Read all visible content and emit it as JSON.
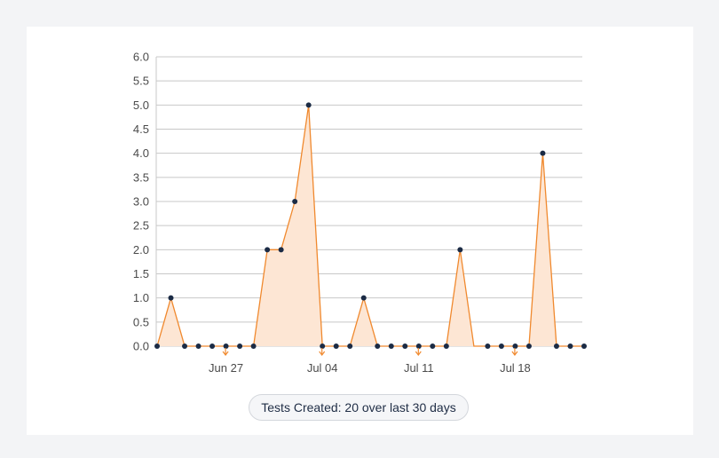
{
  "colors": {
    "line": "#f0892e",
    "fill": "#fde6d4",
    "point": "#1b2b45",
    "grid": "#c8c8c8",
    "arrow": "#f0892e"
  },
  "legend": {
    "label": "Tests Created: 20 over last 30 days"
  },
  "chart_data": {
    "type": "area",
    "title": "",
    "xlabel": "",
    "ylabel": "",
    "ylim": [
      0,
      6
    ],
    "y_ticks": [
      "0.0",
      "0.5",
      "1.0",
      "1.5",
      "2.0",
      "2.5",
      "3.0",
      "3.5",
      "4.0",
      "4.5",
      "5.0",
      "5.5",
      "6.0"
    ],
    "x_ticks": [
      {
        "date": "2021-06-27",
        "label": "Jun 27"
      },
      {
        "date": "2021-07-04",
        "label": "Jul 04"
      },
      {
        "date": "2021-07-11",
        "label": "Jul 11"
      },
      {
        "date": "2021-07-18",
        "label": "Jul 18"
      }
    ],
    "x": [
      "2021-06-22",
      "2021-06-23",
      "2021-06-24",
      "2021-06-25",
      "2021-06-26",
      "2021-06-27",
      "2021-06-28",
      "2021-06-29",
      "2021-06-30",
      "2021-07-01",
      "2021-07-02",
      "2021-07-03",
      "2021-07-04",
      "2021-07-05",
      "2021-07-06",
      "2021-07-07",
      "2021-07-08",
      "2021-07-09",
      "2021-07-10",
      "2021-07-11",
      "2021-07-12",
      "2021-07-13",
      "2021-07-14",
      "2021-07-15",
      "2021-07-16",
      "2021-07-17",
      "2021-07-18",
      "2021-07-19",
      "2021-07-20",
      "2021-07-21",
      "2021-07-22",
      "2021-07-23"
    ],
    "series": [
      {
        "values": [
          0,
          1,
          0,
          0,
          0,
          0,
          0,
          0,
          2,
          2,
          3,
          5,
          0,
          0,
          0,
          1,
          0,
          0,
          0,
          0,
          0,
          0,
          2,
          0,
          0,
          0,
          0,
          0,
          4,
          0,
          0,
          0
        ],
        "markers": [
          true,
          true,
          true,
          true,
          true,
          true,
          true,
          true,
          true,
          true,
          true,
          true,
          true,
          true,
          true,
          true,
          true,
          true,
          true,
          true,
          true,
          true,
          true,
          false,
          true,
          true,
          true,
          true,
          true,
          true,
          true,
          true
        ]
      }
    ],
    "week_markers": [
      "2021-06-27",
      "2021-07-04",
      "2021-07-11",
      "2021-07-18"
    ],
    "grid": true,
    "legend_position": "bottom-center"
  }
}
